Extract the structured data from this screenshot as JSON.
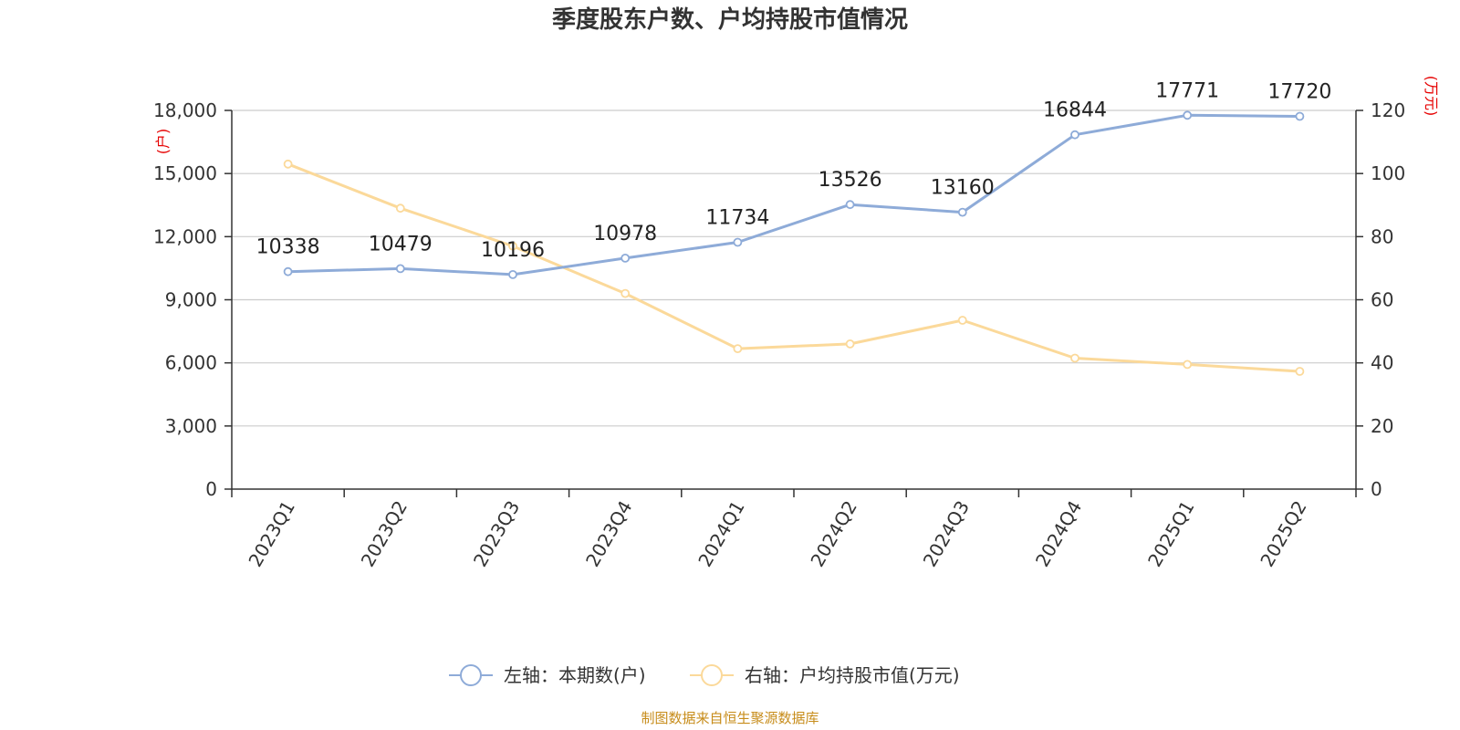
{
  "chart_data": {
    "type": "line",
    "title": "季度股东户数、户均持股市值情况",
    "categories": [
      "2023Q1",
      "2023Q2",
      "2023Q3",
      "2023Q4",
      "2024Q1",
      "2024Q2",
      "2024Q3",
      "2024Q4",
      "2025Q1",
      "2025Q2"
    ],
    "series": [
      {
        "name": "左轴：本期数(户)",
        "axis": "left",
        "color": "#8eabd8",
        "values": [
          10338,
          10479,
          10196,
          10978,
          11734,
          13526,
          13160,
          16844,
          17771,
          17720
        ],
        "show_labels": true
      },
      {
        "name": "右轴：户均持股市值(万元)",
        "axis": "right",
        "color": "#fbd99a",
        "values": [
          103,
          89,
          77,
          62,
          44.5,
          46,
          53.5,
          41.5,
          39.5,
          37.3
        ],
        "show_labels": false
      }
    ],
    "y_left": {
      "range": [
        0,
        18000
      ],
      "ticks": [
        0,
        3000,
        6000,
        9000,
        12000,
        15000,
        18000
      ],
      "tick_labels": [
        "0",
        "3,000",
        "6,000",
        "9,000",
        "12,000",
        "15,000",
        "18,000"
      ],
      "unit": "(户)"
    },
    "y_right": {
      "range": [
        0,
        120
      ],
      "ticks": [
        0,
        20,
        40,
        60,
        80,
        100,
        120
      ],
      "tick_labels": [
        "0",
        "20",
        "40",
        "60",
        "80",
        "100",
        "120"
      ],
      "unit": "(万元)"
    },
    "grid": true,
    "legend_position": "bottom-center",
    "source": "制图数据来自恒生聚源数据库"
  }
}
